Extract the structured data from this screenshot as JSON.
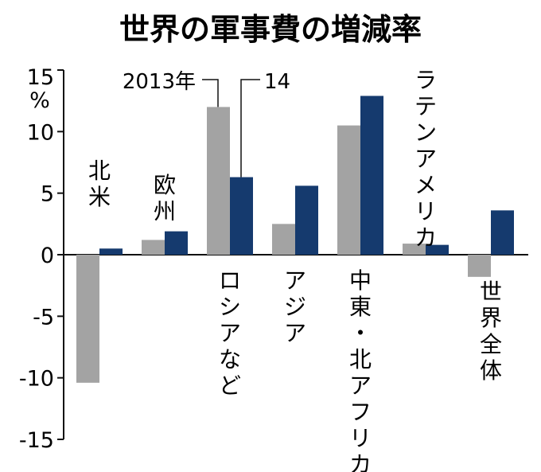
{
  "chart_data": {
    "type": "bar",
    "title": "世界の軍事費の増減率",
    "unit": "%",
    "ylim": [
      -15,
      15
    ],
    "yticks": [
      15,
      10,
      5,
      0,
      -5,
      -10,
      -15
    ],
    "ytick_labels": [
      "15",
      "10",
      "5",
      "0",
      "-5",
      "-10",
      "-15"
    ],
    "categories": [
      "北米",
      "欧州",
      "ロシアなど",
      "アジア",
      "中東・北アフリカ",
      "ラテンアメリカ",
      "世界全体"
    ],
    "series": [
      {
        "name": "2013年",
        "color": "#a3a3a3",
        "values": [
          -10.4,
          1.2,
          12.0,
          2.5,
          10.5,
          0.9,
          -1.8
        ]
      },
      {
        "name": "14",
        "color": "#153a6e",
        "values": [
          0.5,
          1.9,
          6.3,
          5.6,
          12.9,
          0.8,
          3.6
        ]
      }
    ],
    "xlabel": "",
    "ylabel": "%"
  }
}
